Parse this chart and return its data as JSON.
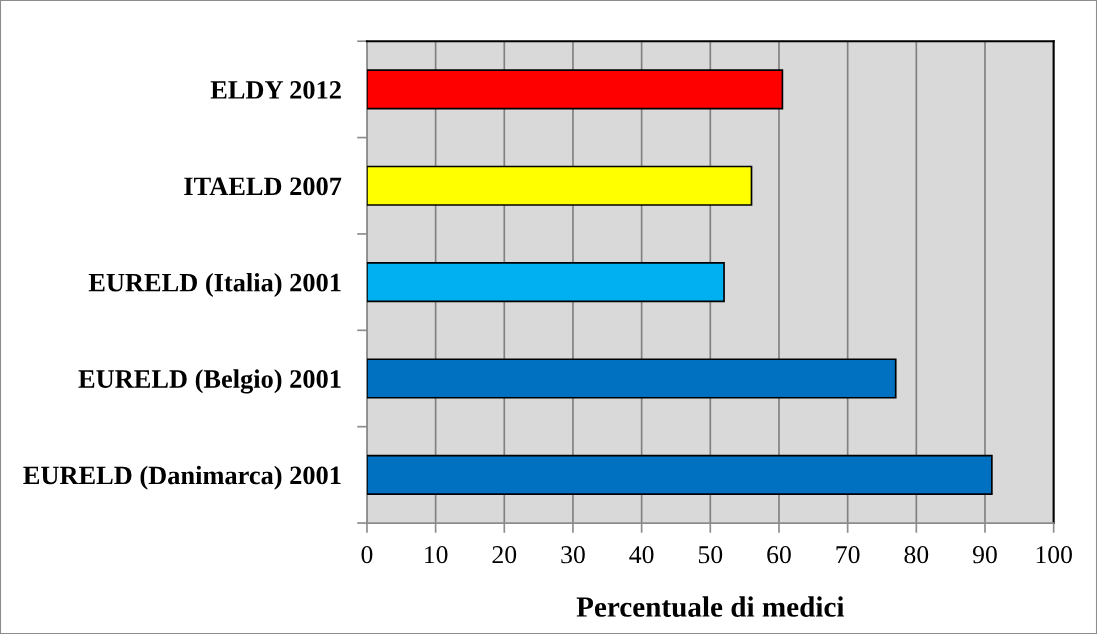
{
  "chart_data": {
    "type": "bar",
    "orientation": "horizontal",
    "categories": [
      "ELDY 2012",
      "ITAELD 2007",
      "EURELD (Italia) 2001",
      "EURELD (Belgio) 2001",
      "EURELD (Danimarca) 2001"
    ],
    "values": [
      60.5,
      56,
      52,
      77,
      91
    ],
    "colors": [
      "#ff0000",
      "#ffff00",
      "#00b0f0",
      "#0070c0",
      "#0070c0"
    ],
    "xlabel": "Percentuale di medici",
    "xlim": [
      0,
      100
    ],
    "xticks": [
      0,
      10,
      20,
      30,
      40,
      50,
      60,
      70,
      80,
      90,
      100
    ],
    "grid": "x"
  }
}
